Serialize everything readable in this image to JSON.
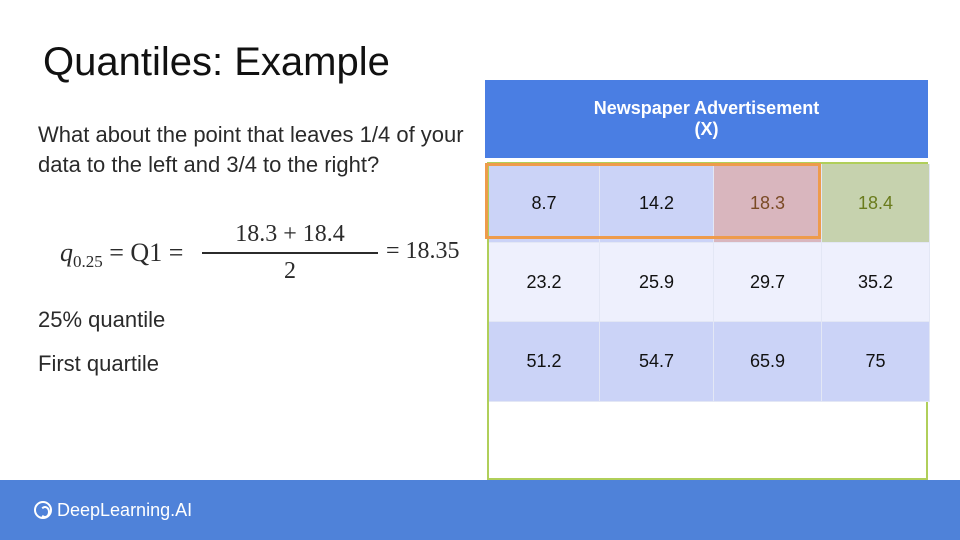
{
  "slide": {
    "title": "Quantiles: Example",
    "question": "What about the point that leaves 1/4 of your data to the left and 3/4 to the right?",
    "formula": {
      "lhs_var": "q",
      "lhs_sub": "0.25",
      "lhs_rest": " = Q1 =",
      "numerator": "18.3 + 18.4",
      "denominator": "2",
      "result": "= 18.35"
    },
    "notes": [
      "25% quantile",
      "First quartile"
    ]
  },
  "table": {
    "header_line1": "Newspaper Advertisement",
    "header_line2": "(X)",
    "rows": [
      [
        "8.7",
        "14.2",
        "18.3",
        "18.4"
      ],
      [
        "23.2",
        "25.9",
        "29.7",
        "35.2"
      ],
      [
        "51.2",
        "54.7",
        "65.9",
        "75"
      ]
    ],
    "colors": {
      "header": "#4a7ee3",
      "cell_blue": "#cbd3f7",
      "cell_light": "#eef0fd",
      "highlight_red": "#d9b6be",
      "highlight_green": "#c6d2ae",
      "box_orange": "#ee9b4c",
      "box_green": "#b0cf5a"
    }
  },
  "footer": {
    "logo_text": "DeepLearning.AI",
    "logo_icon": "deeplearning-logo-icon",
    "color": "#4f82d9"
  }
}
